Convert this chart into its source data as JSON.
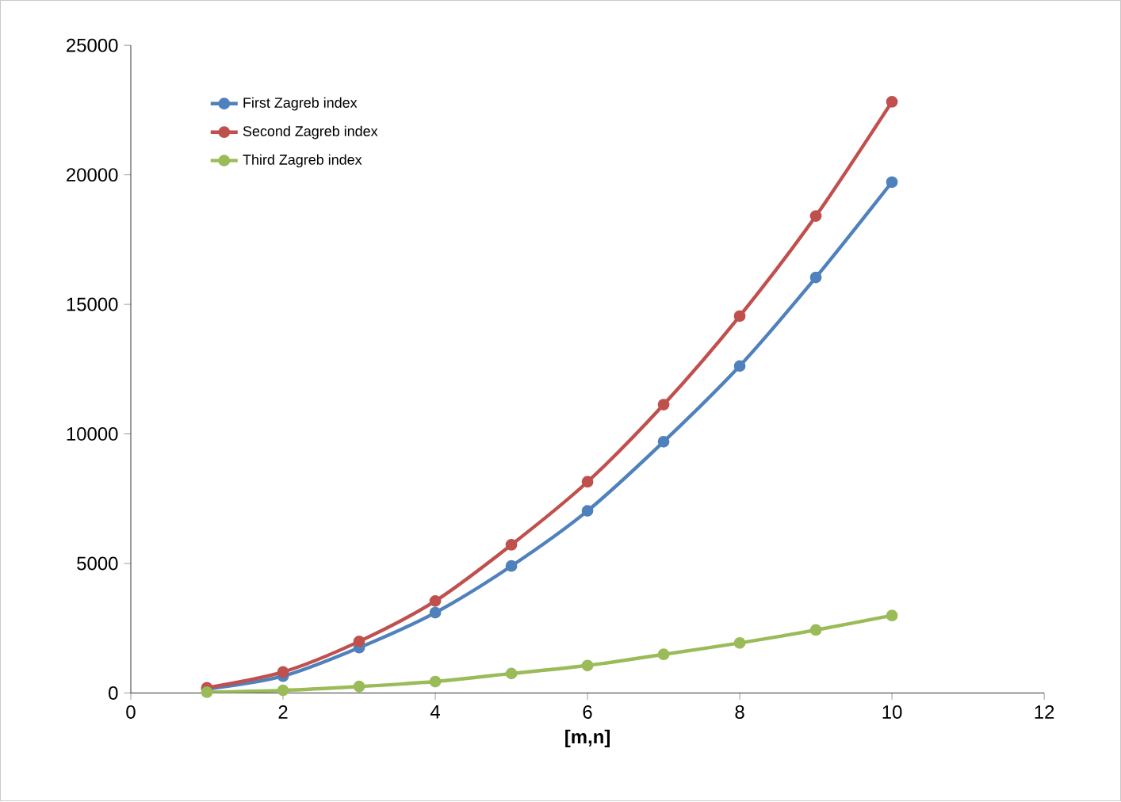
{
  "chart_data": {
    "type": "line",
    "xlabel": "**[m,n]**",
    "x": [
      1,
      2,
      3,
      4,
      5,
      6,
      7,
      8,
      9,
      10
    ],
    "series": [
      {
        "name": "First Zagreb index",
        "color": "#4f81bd",
        "values": [
          150,
          650,
          1750,
          3100,
          4900,
          7030,
          9700,
          12620,
          16040,
          19720
        ]
      },
      {
        "name": "Second Zagreb index",
        "color": "#c0504d",
        "values": [
          200,
          810,
          1990,
          3550,
          5720,
          8150,
          11130,
          14550,
          18410,
          22820
        ]
      },
      {
        "name": "Third Zagreb index",
        "color": "#9bbb59",
        "values": [
          30,
          100,
          250,
          440,
          750,
          1060,
          1490,
          1930,
          2430,
          2990
        ]
      }
    ],
    "xlim": [
      0,
      12
    ],
    "xticks": [
      0,
      2,
      4,
      6,
      8,
      10,
      12
    ],
    "ylim": [
      0,
      25000
    ],
    "yticks": [
      0,
      5000,
      10000,
      15000,
      20000,
      25000
    ],
    "grid": false,
    "legend": "top left",
    "marker": "circle",
    "line_style": "solid"
  }
}
